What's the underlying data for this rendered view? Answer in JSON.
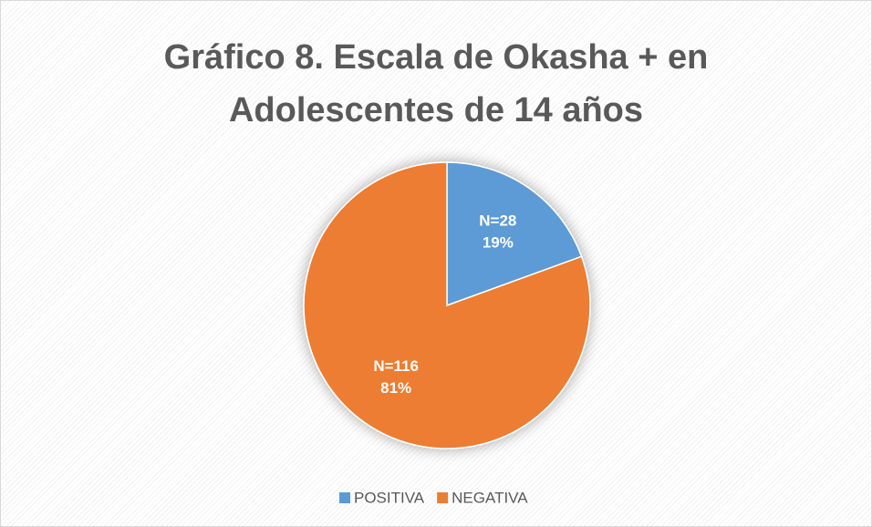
{
  "chart_data": {
    "type": "pie",
    "title": "Gráfico 8. Escala de Okasha + en Adolescentes de 14 años",
    "categories": [
      "POSITIVA",
      "NEGATIVA"
    ],
    "values": [
      28,
      116
    ],
    "value_labels": [
      "N=28",
      "N=116"
    ],
    "percents": [
      19,
      81
    ],
    "percent_labels": [
      "19%",
      "81%"
    ],
    "colors": [
      "#5b9bd5",
      "#ed7d31"
    ],
    "legend": "bottom"
  }
}
